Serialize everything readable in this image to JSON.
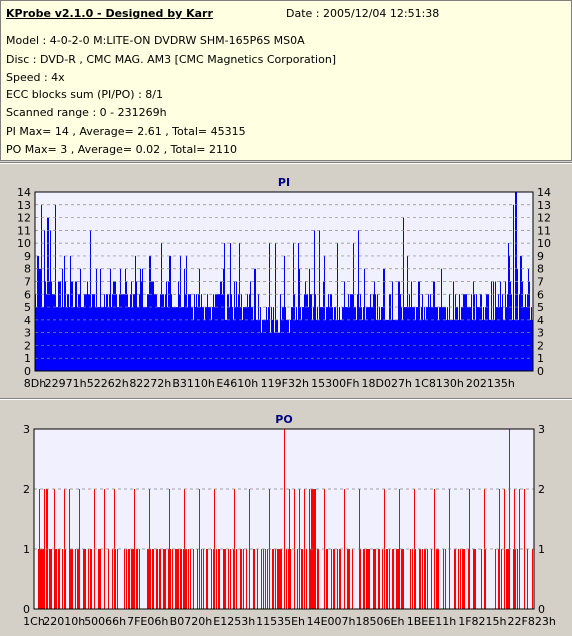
{
  "header": {
    "title": "KProbe v2.1.0 - Designed by Karr",
    "date": "Date : 2005/12/04 12:51:38",
    "lines": [
      "Model : 4-0-2-0 M:LITE-ON DVDRW SHM-165P6S MS0A",
      "Disc : DVD-R , CMC MAG. AM3 [CMC Magnetics Corporation]",
      "Speed : 4x",
      "ECC blocks sum (PI/PO) : 8/1",
      "Scanned range : 0 - 231269h",
      "PI Max= 14 , Average= 2.61 , Total= 45315",
      "PO Max= 3 , Average= 0.02 , Total= 2110"
    ]
  },
  "chart_data": [
    {
      "type": "bar",
      "title": "PI",
      "ylim": [
        0,
        14
      ],
      "yticks": [
        0,
        1,
        2,
        3,
        4,
        5,
        6,
        7,
        8,
        9,
        10,
        11,
        12,
        13,
        14
      ],
      "xlim": [
        0,
        2302569
      ],
      "xtick_labels": [
        "8Dh",
        "22971h",
        "52262h",
        "82272h",
        "B3110h",
        "E4610h",
        "119F32h",
        "15300Fh",
        "18D027h",
        "1C8130h",
        "202135h"
      ],
      "xtick_values": [
        141,
        141681,
        336482,
        533106,
        733456,
        935440,
        1154866,
        1388559,
        1626151,
        1868080,
        2105653
      ],
      "color": "#0000ff",
      "baseline": [
        [
          0,
          6
        ],
        [
          0.05,
          6
        ],
        [
          0.1,
          5.5
        ],
        [
          0.2,
          6
        ],
        [
          0.3,
          5.5
        ],
        [
          0.42,
          5
        ],
        [
          0.48,
          4
        ],
        [
          0.55,
          5
        ],
        [
          0.7,
          5
        ],
        [
          0.85,
          5
        ],
        [
          0.95,
          5
        ],
        [
          1,
          5
        ]
      ],
      "peaks": [
        [
          0.005,
          9
        ],
        [
          0.012,
          13
        ],
        [
          0.018,
          11
        ],
        [
          0.025,
          12
        ],
        [
          0.03,
          11
        ],
        [
          0.04,
          13
        ],
        [
          0.055,
          8
        ],
        [
          0.07,
          9
        ],
        [
          0.09,
          8
        ],
        [
          0.11,
          11
        ],
        [
          0.13,
          8
        ],
        [
          0.16,
          7
        ],
        [
          0.18,
          8
        ],
        [
          0.2,
          9
        ],
        [
          0.23,
          9
        ],
        [
          0.27,
          9
        ],
        [
          0.3,
          8
        ],
        [
          0.33,
          8
        ],
        [
          0.38,
          10
        ],
        [
          0.41,
          10
        ],
        [
          0.44,
          8
        ],
        [
          0.47,
          10
        ],
        [
          0.5,
          9
        ],
        [
          0.53,
          8
        ],
        [
          0.55,
          8
        ],
        [
          0.58,
          9
        ],
        [
          0.62,
          7
        ],
        [
          0.66,
          8
        ],
        [
          0.7,
          8
        ],
        [
          0.73,
          7
        ],
        [
          0.77,
          7
        ],
        [
          0.8,
          7
        ],
        [
          0.84,
          7
        ],
        [
          0.88,
          7
        ],
        [
          0.92,
          7
        ],
        [
          0.95,
          10
        ],
        [
          0.96,
          13
        ],
        [
          0.965,
          14
        ],
        [
          0.975,
          9
        ],
        [
          0.99,
          8
        ]
      ]
    },
    {
      "type": "bar",
      "title": "PO",
      "ylim": [
        0,
        3
      ],
      "yticks": [
        0,
        1,
        2,
        3
      ],
      "xlim": [
        0,
        2302569
      ],
      "xtick_labels": [
        "1Ch",
        "22010h",
        "50066h",
        "7FE06h",
        "B0720h",
        "E1253h",
        "11535Eh",
        "14E007h",
        "18506Eh",
        "1BEE11h",
        "1F8215h",
        "22F823h"
      ],
      "xtick_values": [
        28,
        139280,
        327782,
        523782,
        722720,
        922195,
        1135454,
        1368071,
        1593454,
        1830417,
        2064917,
        2291747
      ],
      "color": "#ff0000",
      "level2": [
        0.01,
        0.02,
        0.025,
        0.04,
        0.06,
        0.07,
        0.09,
        0.12,
        0.14,
        0.16,
        0.2,
        0.23,
        0.27,
        0.3,
        0.33,
        0.36,
        0.4,
        0.43,
        0.47,
        0.5,
        0.51,
        0.52,
        0.53,
        0.54,
        0.55,
        0.58,
        0.62,
        0.65,
        0.7,
        0.73,
        0.76,
        0.8,
        0.83,
        0.87,
        0.9,
        0.93,
        0.94,
        0.96,
        0.97,
        0.98
      ],
      "level3": [
        0.5,
        0.95
      ]
    }
  ]
}
